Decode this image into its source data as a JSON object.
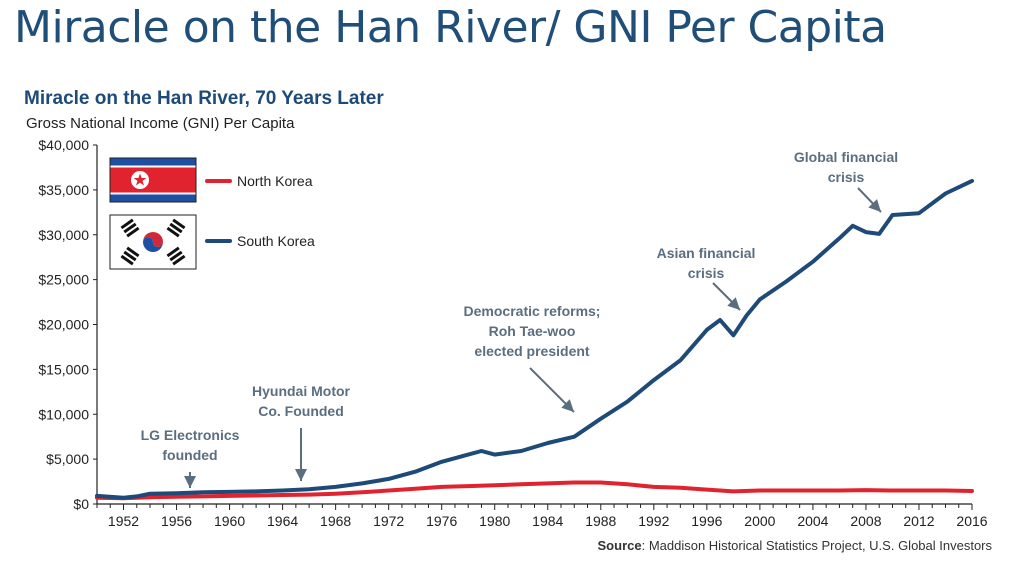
{
  "page_title": "Miracle on the Han River/ GNI Per Capita",
  "chart_data": {
    "type": "line",
    "title": "Miracle on the Han River, 70 Years Later",
    "subtitle": "Gross National Income (GNI) Per Capita",
    "source_label": "Source",
    "source_text": ": Maddison Historical Statistics Project, U.S. Global Investors",
    "xlim": [
      1950,
      2016
    ],
    "ylim": [
      0,
      40000
    ],
    "x_ticks": [
      1952,
      1956,
      1960,
      1964,
      1968,
      1972,
      1976,
      1980,
      1984,
      1988,
      1992,
      1996,
      2000,
      2004,
      2008,
      2012,
      2016
    ],
    "y_ticks": [
      0,
      5000,
      10000,
      15000,
      20000,
      25000,
      30000,
      35000,
      40000
    ],
    "y_tick_labels": [
      "$0",
      "$5,000",
      "$10,000",
      "$15,000",
      "$20,000",
      "$25,000",
      "$30,000",
      "$35,000",
      "$40,000"
    ],
    "series": [
      {
        "name": "North Korea",
        "color": "#e0232f",
        "points": [
          [
            1950,
            700
          ],
          [
            1952,
            650
          ],
          [
            1954,
            750
          ],
          [
            1956,
            800
          ],
          [
            1958,
            850
          ],
          [
            1960,
            900
          ],
          [
            1962,
            950
          ],
          [
            1964,
            1000
          ],
          [
            1966,
            1050
          ],
          [
            1968,
            1150
          ],
          [
            1970,
            1300
          ],
          [
            1972,
            1500
          ],
          [
            1974,
            1700
          ],
          [
            1976,
            1900
          ],
          [
            1978,
            2000
          ],
          [
            1980,
            2100
          ],
          [
            1982,
            2200
          ],
          [
            1984,
            2300
          ],
          [
            1986,
            2400
          ],
          [
            1988,
            2400
          ],
          [
            1990,
            2200
          ],
          [
            1992,
            1900
          ],
          [
            1994,
            1800
          ],
          [
            1996,
            1600
          ],
          [
            1998,
            1400
          ],
          [
            2000,
            1500
          ],
          [
            2002,
            1500
          ],
          [
            2004,
            1500
          ],
          [
            2006,
            1500
          ],
          [
            2008,
            1550
          ],
          [
            2010,
            1500
          ],
          [
            2012,
            1500
          ],
          [
            2014,
            1500
          ],
          [
            2016,
            1450
          ]
        ]
      },
      {
        "name": "South Korea",
        "color": "#1d4a78",
        "points": [
          [
            1950,
            900
          ],
          [
            1952,
            700
          ],
          [
            1953,
            850
          ],
          [
            1954,
            1150
          ],
          [
            1956,
            1200
          ],
          [
            1958,
            1300
          ],
          [
            1960,
            1350
          ],
          [
            1962,
            1400
          ],
          [
            1964,
            1500
          ],
          [
            1966,
            1650
          ],
          [
            1968,
            1900
          ],
          [
            1970,
            2300
          ],
          [
            1972,
            2800
          ],
          [
            1974,
            3600
          ],
          [
            1976,
            4700
          ],
          [
            1978,
            5500
          ],
          [
            1979,
            5900
          ],
          [
            1980,
            5500
          ],
          [
            1982,
            5900
          ],
          [
            1984,
            6800
          ],
          [
            1986,
            7500
          ],
          [
            1988,
            9500
          ],
          [
            1990,
            11400
          ],
          [
            1992,
            13800
          ],
          [
            1994,
            16000
          ],
          [
            1996,
            19400
          ],
          [
            1997,
            20500
          ],
          [
            1998,
            18800
          ],
          [
            1999,
            21000
          ],
          [
            2000,
            22800
          ],
          [
            2002,
            24800
          ],
          [
            2004,
            27000
          ],
          [
            2006,
            29600
          ],
          [
            2007,
            31000
          ],
          [
            2008,
            30300
          ],
          [
            2009,
            30100
          ],
          [
            2010,
            32200
          ],
          [
            2012,
            32400
          ],
          [
            2014,
            34600
          ],
          [
            2016,
            36000
          ]
        ]
      }
    ],
    "annotations": [
      {
        "lines": [
          "LG Electronics",
          "founded"
        ],
        "year": 1958
      },
      {
        "lines": [
          "Hyundai Motor",
          "Co. Founded"
        ],
        "year": 1967
      },
      {
        "lines": [
          "Democratic reforms;",
          "Roh Tae-woo",
          "elected president"
        ],
        "year": 1987
      },
      {
        "lines": [
          "Asian financial",
          "crisis"
        ],
        "year": 1998
      },
      {
        "lines": [
          "Global financial",
          "crisis"
        ],
        "year": 2009
      }
    ],
    "legend_position": "top-left",
    "grid": false
  },
  "colors": {
    "title_blue": "#1f4e79",
    "chart_title_blue": "#1d4a78",
    "annotation_gray": "#5a6e7f",
    "axis": "#222222"
  }
}
